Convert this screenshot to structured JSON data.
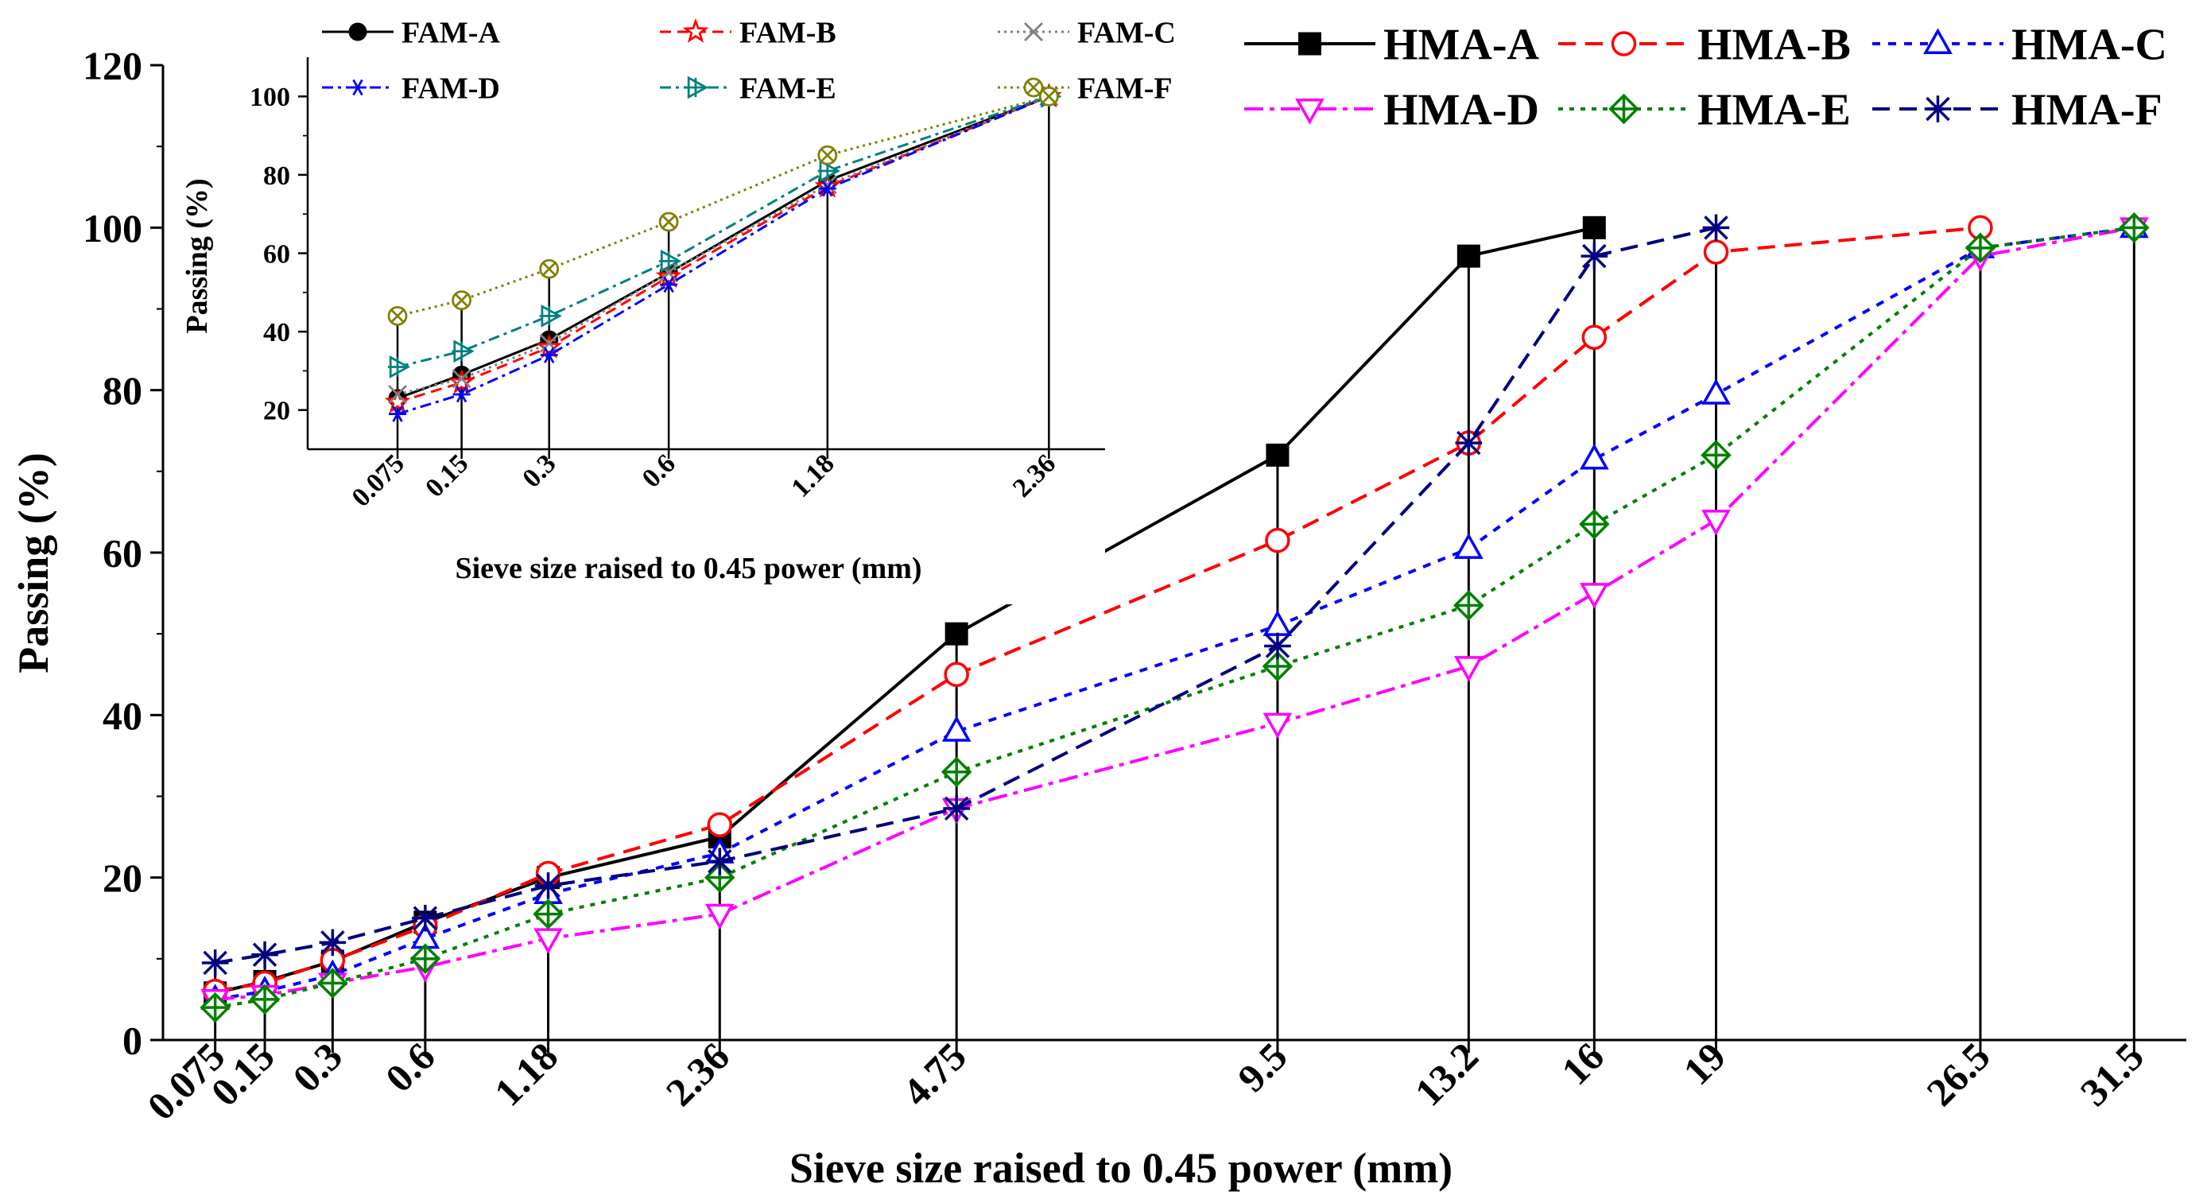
{
  "chart_data": [
    {
      "id": "main",
      "type": "line",
      "xlabel": "Sieve size raised to 0.45 power (mm)",
      "ylabel": "Passing (%)",
      "x_scale": "power 0.45",
      "x": [
        0.075,
        0.15,
        0.3,
        0.6,
        1.18,
        2.36,
        4.75,
        9.5,
        13.2,
        16,
        19,
        26.5,
        31.5
      ],
      "x_tick_labels": [
        "0.075",
        "0.15",
        "0.3",
        "0.6",
        "1.18",
        "2.36",
        "4.75",
        "9.5",
        "13.2",
        "16",
        "19",
        "26.5",
        "31.5"
      ],
      "ylim": [
        0,
        120
      ],
      "y_ticks": [
        0,
        20,
        40,
        60,
        80,
        100,
        120
      ],
      "legend_position": "top-right",
      "series": [
        {
          "name": "HMA-A",
          "color": "#000000",
          "dash": "solid",
          "marker": "filled-square",
          "values": [
            5.8,
            7.2,
            9.7,
            14.5,
            20.0,
            25.0,
            50.0,
            72.0,
            96.5,
            100.0,
            null,
            null,
            null
          ]
        },
        {
          "name": "HMA-B",
          "color": "#ff0000",
          "dash": "dash",
          "marker": "circle",
          "values": [
            6.0,
            7.0,
            9.8,
            14.0,
            20.5,
            26.5,
            45.0,
            61.5,
            73.5,
            86.5,
            97.0,
            100.0,
            null
          ]
        },
        {
          "name": "HMA-C",
          "color": "#0000ff",
          "dash": "short-dash",
          "marker": "triangle-up",
          "values": [
            5.0,
            6.0,
            8.0,
            12.5,
            18.0,
            23.0,
            38.0,
            51.0,
            60.5,
            71.5,
            79.5,
            97.5,
            100.0
          ]
        },
        {
          "name": "HMA-D",
          "color": "#ff00ff",
          "dash": "dash-dot",
          "marker": "triangle-down",
          "values": [
            5.0,
            5.5,
            7.0,
            9.0,
            12.5,
            15.5,
            28.5,
            39.0,
            46.0,
            55.0,
            64.0,
            96.5,
            100.0
          ]
        },
        {
          "name": "HMA-E",
          "color": "#008000",
          "dash": "short-dot",
          "marker": "diamond-plus",
          "values": [
            4.0,
            5.0,
            7.0,
            10.0,
            15.5,
            20.0,
            33.0,
            46.0,
            53.5,
            63.5,
            72.0,
            97.5,
            100.0
          ]
        },
        {
          "name": "HMA-F",
          "color": "#000080",
          "dash": "dash",
          "marker": "star",
          "values": [
            9.5,
            10.5,
            12.0,
            15.0,
            19.0,
            22.0,
            28.5,
            48.5,
            73.5,
            96.5,
            100.0,
            null,
            null
          ]
        }
      ]
    },
    {
      "id": "inset",
      "type": "line",
      "xlabel": "Sieve size raised to 0.45 power (mm)",
      "ylabel": "Passing (%)",
      "x_scale": "power 0.45",
      "x": [
        0.075,
        0.15,
        0.3,
        0.6,
        1.18,
        2.36
      ],
      "x_tick_labels": [
        "0.075",
        "0.15",
        "0.3",
        "0.6",
        "1.18",
        "2.36"
      ],
      "ylim": [
        10,
        110
      ],
      "y_ticks": [
        20,
        40,
        60,
        80,
        100
      ],
      "legend_position": "top",
      "series": [
        {
          "name": "FAM-A",
          "color": "#000000",
          "dash": "solid",
          "marker": "circle-filled",
          "values": [
            23,
            29,
            38,
            55,
            78.5,
            100
          ]
        },
        {
          "name": "FAM-B",
          "color": "#ff0000",
          "dash": "dash",
          "marker": "star5",
          "values": [
            22,
            27,
            36,
            54,
            77,
            100
          ]
        },
        {
          "name": "FAM-C",
          "color": "#808080",
          "dash": "dot",
          "marker": "x",
          "values": [
            24,
            28,
            37,
            55,
            77.5,
            100
          ]
        },
        {
          "name": "FAM-D",
          "color": "#0000ff",
          "dash": "dash-dot",
          "marker": "asterisk",
          "values": [
            19,
            24,
            34,
            52,
            76.5,
            100
          ]
        },
        {
          "name": "FAM-E",
          "color": "#008080",
          "dash": "dash-dot",
          "marker": "triangle-right-plus",
          "values": [
            31,
            35,
            44,
            58,
            81,
            100
          ]
        },
        {
          "name": "FAM-F",
          "color": "#808000",
          "dash": "dot",
          "marker": "circle-x",
          "values": [
            44,
            48,
            56,
            68,
            85,
            100
          ]
        }
      ]
    }
  ]
}
